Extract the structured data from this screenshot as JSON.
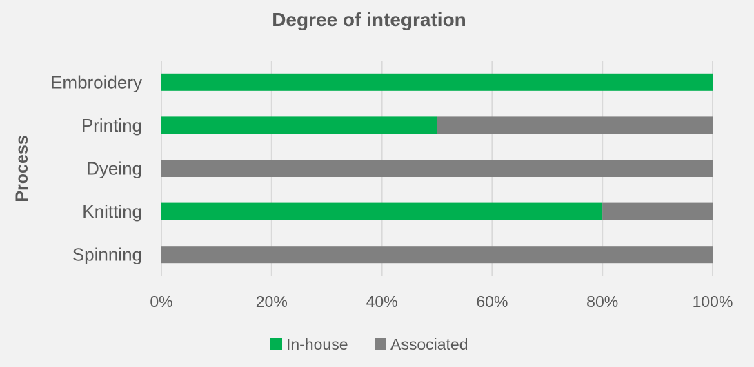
{
  "chart_data": {
    "type": "bar",
    "orientation": "horizontal",
    "stacked": "percent",
    "title": "Degree of integration",
    "ylabel": "Process",
    "xlabel": "",
    "categories": [
      "Embroidery",
      "Printing",
      "Dyeing",
      "Knitting",
      "Spinning"
    ],
    "series": [
      {
        "name": "In-house",
        "color": "#00b050",
        "values": [
          100,
          50,
          0,
          80,
          0
        ]
      },
      {
        "name": "Associated",
        "color": "#808080",
        "values": [
          0,
          50,
          100,
          20,
          100
        ]
      }
    ],
    "xlim": [
      0,
      100
    ],
    "x_ticks": [
      "0%",
      "20%",
      "40%",
      "60%",
      "80%",
      "100%"
    ],
    "grid": "vertical",
    "legend": "bottom"
  }
}
